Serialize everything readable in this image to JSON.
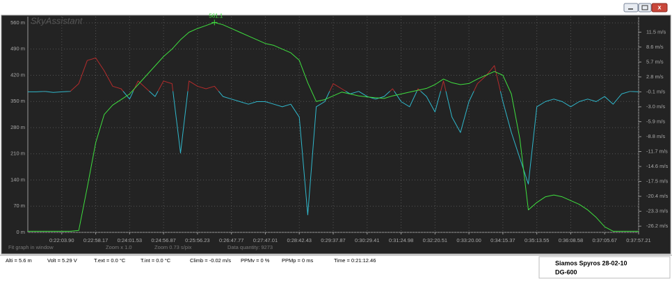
{
  "chart_data": {
    "type": "line",
    "title": "SkyAssistant",
    "categories": [
      null,
      null,
      null,
      null,
      "0:22:03.90",
      null,
      null,
      null,
      "0:22:58.17",
      null,
      null,
      null,
      "0:24:01.53",
      null,
      null,
      null,
      "0:24:56.87",
      null,
      null,
      null,
      "0:25:56.23",
      null,
      null,
      null,
      "0:26:47.77",
      null,
      null,
      null,
      "0:27:47.01",
      null,
      null,
      null,
      "0:28:42.43",
      null,
      null,
      null,
      "0:29:37.87",
      null,
      null,
      null,
      "0:30:29.41",
      null,
      null,
      null,
      "0:31:24.98",
      null,
      null,
      null,
      "0:32:20.51",
      null,
      null,
      null,
      "0:33:20.00",
      null,
      null,
      null,
      "0:34:15.37",
      null,
      null,
      null,
      "0:35:13.55",
      null,
      null,
      null,
      "0:36:08.58",
      null,
      null,
      null,
      "0:37:05.67",
      null,
      null,
      null,
      "0:37:57.21"
    ],
    "series": [
      {
        "color": "#3fe03f",
        "values": [
          3,
          3,
          3,
          3,
          3,
          3,
          5,
          120,
          240,
          315,
          340,
          355,
          370,
          395,
          420,
          445,
          470,
          490,
          515,
          535,
          545,
          553,
          561.1,
          555,
          545,
          535,
          525,
          515,
          505,
          500,
          490,
          480,
          460,
          400,
          350,
          355,
          365,
          375,
          370,
          365,
          362,
          360,
          358,
          365,
          370,
          375,
          380,
          385,
          395,
          410,
          400,
          395,
          398,
          410,
          420,
          430,
          420,
          370,
          250,
          60,
          80,
          95,
          100,
          95,
          85,
          75,
          60,
          40,
          15,
          3,
          3,
          3,
          3
        ]
      },
      {
        "axis": "y2",
        "color": "#b32b2b",
        "color_down": "#2fb8cc",
        "values": [
          -0.1,
          -0.1,
          0,
          -0.2,
          -0.1,
          0,
          1.5,
          6,
          6.5,
          4,
          1,
          0.5,
          -1.5,
          2,
          0.5,
          -1,
          2,
          1.5,
          -12,
          2,
          1,
          0.5,
          1,
          -1,
          -1.5,
          -2,
          -2.5,
          -2,
          -2,
          -2.5,
          -3,
          -2.5,
          -5,
          -24,
          -3,
          -2,
          1.5,
          0.5,
          -0.5,
          0,
          -1,
          -1.5,
          -1,
          0.5,
          -2,
          -3,
          0.5,
          -1,
          -4,
          2,
          -5,
          -8,
          -2,
          1.5,
          3,
          5,
          -2,
          -8,
          -13,
          -18,
          -3,
          -2,
          -1.5,
          -2,
          -3,
          -2,
          -1.5,
          -2,
          -1,
          -2.5,
          -0.5,
          0,
          -0.1
        ]
      }
    ],
    "ylim": [
      0,
      560
    ],
    "yticks": [
      {
        "value": 0,
        "label": "0 m"
      },
      {
        "value": 70,
        "label": "70 m"
      },
      {
        "value": 140,
        "label": "140 m"
      },
      {
        "value": 210,
        "label": "210 m"
      },
      {
        "value": 280,
        "label": "280 m"
      },
      {
        "value": 350,
        "label": "350 m"
      },
      {
        "value": 420,
        "label": "420 m"
      },
      {
        "value": 490,
        "label": "490 m"
      },
      {
        "value": 560,
        "label": "560 m"
      }
    ],
    "y2lim": [
      -27.4,
      13.3
    ],
    "y2ticks": [
      {
        "value": 11.5,
        "label": "11.5 m/s"
      },
      {
        "value": 8.6,
        "label": "8.6 m/s"
      },
      {
        "value": 5.7,
        "label": "5.7 m/s"
      },
      {
        "value": 2.8,
        "label": "2.8 m/s"
      },
      {
        "value": -0.1,
        "label": "-0.1 m/s"
      },
      {
        "value": -3.0,
        "label": "-3.0 m/s"
      },
      {
        "value": -5.9,
        "label": "-5.9 m/s"
      },
      {
        "value": -8.8,
        "label": "-8.8 m/s"
      },
      {
        "value": -11.7,
        "label": "-11.7 m/s"
      },
      {
        "value": -14.6,
        "label": "-14.6 m/s"
      },
      {
        "value": -17.5,
        "label": "-17.5 m/s"
      },
      {
        "value": -20.4,
        "label": "-20.4 m/s"
      },
      {
        "value": -23.3,
        "label": "-23.3 m/s"
      },
      {
        "value": -26.2,
        "label": "-26.2 m/s"
      }
    ],
    "grid": true
  },
  "footer": [
    "Fit graph in window",
    "Zoom x 1.0",
    "Zoom  0.73 s/pix",
    "Data quantity: 9273"
  ],
  "status_bar": [
    "Alti = 5.6 m",
    "Volt = 5.29 V",
    "T.ext = 0.0 °C",
    "T.int = 0.0 °C",
    "Climb = -0.02 m/s",
    "PPMv = 0 %",
    "PPMp = 0 ms",
    "Time = 0:21:12.46"
  ],
  "pilot": {
    "name_date": "Siamos Spyros   28-02-10",
    "glider": "DG-600"
  }
}
